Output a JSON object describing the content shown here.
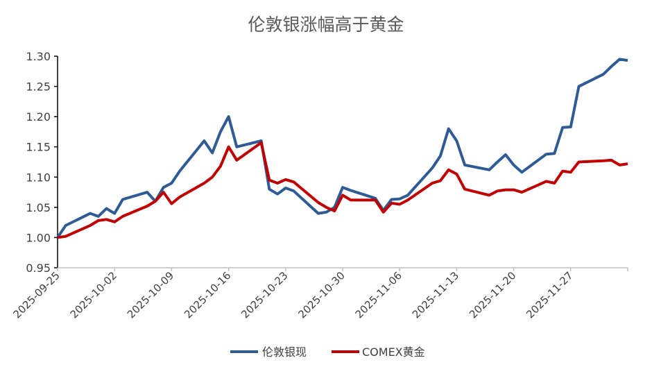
{
  "chart_data": {
    "type": "line",
    "title": "伦敦银涨幅高于黄金",
    "xlabel": "",
    "ylabel": "",
    "ylim": [
      0.95,
      1.3
    ],
    "yticks": [
      "0.95",
      "1.00",
      "1.05",
      "1.10",
      "1.15",
      "1.20",
      "1.25",
      "1.30"
    ],
    "xticks": [
      "2025-09-25",
      "2025-10-02",
      "2025-10-09",
      "2025-10-16",
      "2025-10-23",
      "2025-10-30",
      "2025-11-06",
      "2025-11-13",
      "2025-11-20",
      "2025-11-27"
    ],
    "xlim": [
      "2025-09-25",
      "2025-12-04"
    ],
    "grid": false,
    "legend_position": "bottom",
    "x": [
      "2025-09-25",
      "2025-09-26",
      "2025-09-29",
      "2025-09-30",
      "2025-10-01",
      "2025-10-02",
      "2025-10-03",
      "2025-10-06",
      "2025-10-07",
      "2025-10-08",
      "2025-10-09",
      "2025-10-10",
      "2025-10-13",
      "2025-10-14",
      "2025-10-15",
      "2025-10-16",
      "2025-10-17",
      "2025-10-20",
      "2025-10-21",
      "2025-10-22",
      "2025-10-23",
      "2025-10-24",
      "2025-10-27",
      "2025-10-28",
      "2025-10-29",
      "2025-10-30",
      "2025-10-31",
      "2025-11-03",
      "2025-11-04",
      "2025-11-05",
      "2025-11-06",
      "2025-11-07",
      "2025-11-10",
      "2025-11-11",
      "2025-11-12",
      "2025-11-13",
      "2025-11-14",
      "2025-11-17",
      "2025-11-18",
      "2025-11-19",
      "2025-11-20",
      "2025-11-21",
      "2025-11-24",
      "2025-11-25",
      "2025-11-26",
      "2025-11-27",
      "2025-11-28",
      "2025-12-01",
      "2025-12-02",
      "2025-12-03",
      "2025-12-04"
    ],
    "series": [
      {
        "name": "伦敦银现",
        "color": "#2f5b94",
        "values": [
          1.0,
          1.02,
          1.04,
          1.035,
          1.048,
          1.04,
          1.063,
          1.075,
          1.06,
          1.083,
          1.09,
          1.11,
          1.16,
          1.14,
          1.175,
          1.2,
          1.15,
          1.16,
          1.08,
          1.072,
          1.082,
          1.077,
          1.04,
          1.042,
          1.05,
          1.083,
          1.078,
          1.065,
          1.045,
          1.063,
          1.064,
          1.07,
          1.115,
          1.135,
          1.18,
          1.16,
          1.12,
          1.112,
          1.125,
          1.137,
          1.12,
          1.108,
          1.138,
          1.139,
          1.182,
          1.183,
          1.25,
          1.27,
          1.283,
          1.295,
          1.293
        ]
      },
      {
        "name": "COMEX黄金",
        "color": "#c00000",
        "values": [
          1.0,
          1.002,
          1.02,
          1.028,
          1.03,
          1.026,
          1.035,
          1.052,
          1.06,
          1.075,
          1.056,
          1.067,
          1.09,
          1.1,
          1.118,
          1.15,
          1.128,
          1.157,
          1.095,
          1.09,
          1.096,
          1.092,
          1.058,
          1.05,
          1.044,
          1.07,
          1.062,
          1.062,
          1.042,
          1.057,
          1.055,
          1.062,
          1.09,
          1.094,
          1.112,
          1.105,
          1.08,
          1.07,
          1.077,
          1.079,
          1.079,
          1.075,
          1.093,
          1.09,
          1.11,
          1.108,
          1.125,
          1.127,
          1.128,
          1.12,
          1.122
        ]
      }
    ]
  }
}
